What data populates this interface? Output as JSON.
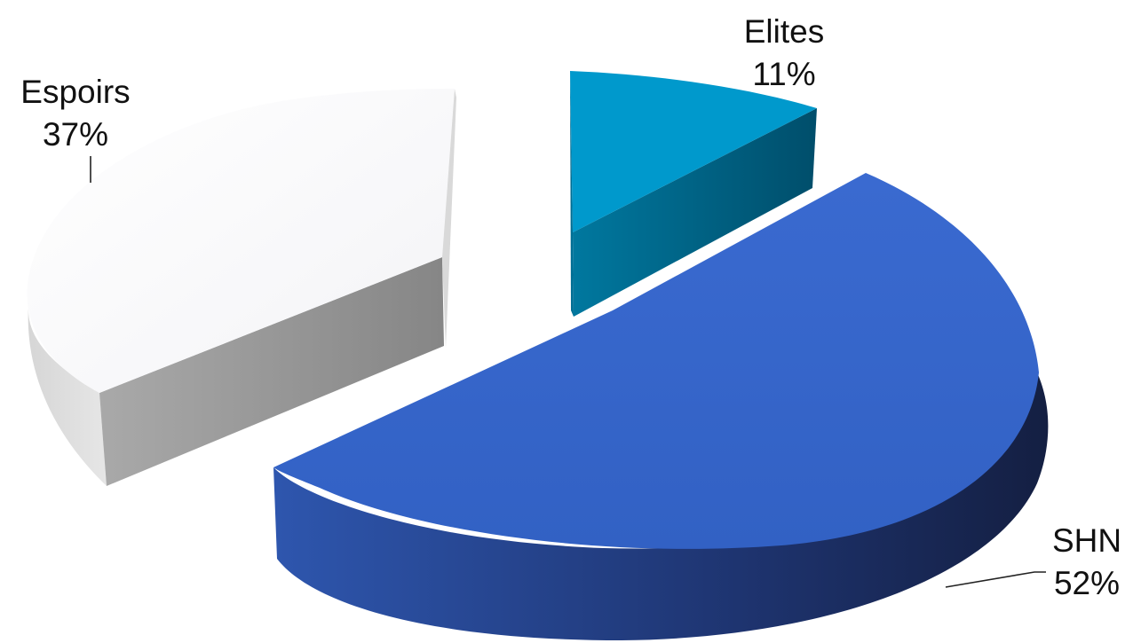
{
  "chart_data": {
    "type": "pie",
    "style": "3d-exploded",
    "slices": [
      {
        "label": "Elites",
        "percent_label": "11%",
        "value": 11,
        "color": "#0099CC",
        "side_color": "#005E80"
      },
      {
        "label": "SHN",
        "percent_label": "52%",
        "value": 52,
        "color": "#3564C7",
        "side_color": "#1A2B58"
      },
      {
        "label": "Espoirs",
        "percent_label": "37%",
        "value": 37,
        "color": "#FAFAFC",
        "side_color": "#8C8C8C"
      }
    ]
  }
}
